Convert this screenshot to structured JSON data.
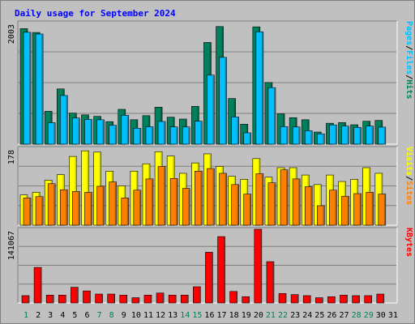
{
  "colors": {
    "background": "#c0c0c0",
    "plot_background": "#c0c0c0",
    "gridline": "#808080",
    "title": "#0000ff",
    "hits": "#00805c",
    "files": "#00c0ff",
    "pages": "#00c0ff",
    "visits": "#ffff00",
    "sites": "#ff8000",
    "kbytes": "#ff0000",
    "day_normal": "#000000",
    "day_weekend": "#00805c",
    "legend_sep": "#000000"
  },
  "chart_data": {
    "type": "bar",
    "title": "Daily usage for September 2024",
    "categories": [
      "1",
      "2",
      "3",
      "4",
      "5",
      "6",
      "7",
      "8",
      "9",
      "10",
      "11",
      "12",
      "13",
      "14",
      "15",
      "16",
      "17",
      "18",
      "19",
      "20",
      "21",
      "22",
      "23",
      "24",
      "25",
      "26",
      "27",
      "28",
      "29",
      "30",
      "31"
    ],
    "weekend_days": [
      "1",
      "7",
      "8",
      "14",
      "15",
      "21",
      "22",
      "28",
      "29"
    ],
    "panels": [
      {
        "name": "requests",
        "ymax_label": "2003",
        "ylim": [
          0,
          2003
        ],
        "legend": [
          "Hits",
          "/",
          "Files",
          "/",
          "Pages"
        ],
        "series": [
          {
            "name": "Hits",
            "color_key": "hits",
            "values": [
              1905,
              1841,
              542,
              911,
              512,
              483,
              458,
              372,
              574,
              403,
              470,
              610,
              445,
              414,
              624,
              1677,
              1939,
              753,
              329,
              1934,
              1016,
              500,
              437,
              403,
              200,
              345,
              357,
              320,
              378,
              391,
              0
            ]
          },
          {
            "name": "Files",
            "color_key": "files",
            "values": [
              1845,
              1816,
              355,
              802,
              432,
              409,
              402,
              311,
              475,
              263,
              288,
              374,
              284,
              284,
              378,
              1138,
              1431,
              449,
              187,
              1853,
              932,
              289,
              284,
              221,
              170,
              318,
              298,
              277,
              298,
              281,
              0
            ]
          },
          {
            "name": "Pages",
            "color_key": "pages",
            "values": [
              1845,
              1816,
              355,
              802,
              432,
              409,
              402,
              311,
              475,
              263,
              288,
              374,
              284,
              284,
              378,
              1138,
              1431,
              449,
              187,
              1853,
              932,
              289,
              284,
              221,
              170,
              318,
              298,
              277,
              298,
              281,
              0
            ]
          }
        ]
      },
      {
        "name": "visitors",
        "ymax_label": "178",
        "ylim": [
          0,
          178
        ],
        "legend": [
          "Sites",
          "/",
          "Visits"
        ],
        "series": [
          {
            "name": "Visits",
            "color_key": "visits",
            "values": [
              70,
              76,
              104,
              117,
              159,
              172,
              169,
              125,
              91,
              125,
              142,
              170,
              160,
              120,
              144,
              165,
              136,
              113,
              106,
              154,
              111,
              133,
              133,
              116,
              94,
              116,
              101,
              106,
              133,
              120,
              0
            ]
          },
          {
            "name": "Sites",
            "color_key": "sites",
            "values": [
              63,
              66,
              96,
              82,
              78,
              76,
              90,
              100,
              63,
              81,
              107,
              136,
              108,
              85,
              125,
              131,
              120,
              94,
              72,
              119,
              98,
              128,
              107,
              89,
              45,
              81,
              67,
              73,
              76,
              72,
              0
            ]
          }
        ]
      },
      {
        "name": "volume",
        "ymax_label": "141067",
        "ylim": [
          0,
          141067
        ],
        "legend": [
          "KBytes"
        ],
        "series": [
          {
            "name": "KBytes",
            "color_key": "kbytes",
            "values": [
              14000,
              68000,
              15000,
              15000,
              30000,
              23000,
              17000,
              17000,
              15000,
              10000,
              15000,
              19000,
              15000,
              15000,
              31000,
              97000,
              127000,
              22000,
              12000,
              141067,
              79000,
              18000,
              16000,
              14000,
              10000,
              12000,
              15000,
              14000,
              14000,
              17000,
              0
            ]
          }
        ]
      }
    ]
  }
}
